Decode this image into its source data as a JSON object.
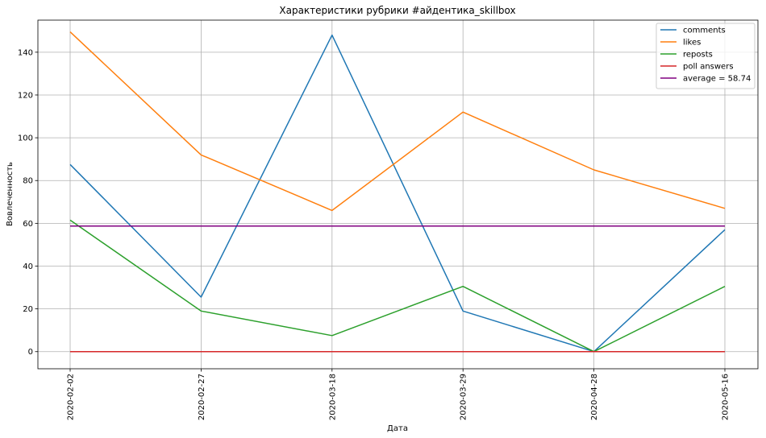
{
  "chart_data": {
    "type": "line",
    "title": "Характеристики рубрики #айдентика_skillbox",
    "xlabel": "Дата",
    "ylabel": "Вовлеченность",
    "categories": [
      "2020-02-02",
      "2020-02-27",
      "2020-03-18",
      "2020-03-29",
      "2020-04-28",
      "2020-05-16"
    ],
    "ylim": [
      -8,
      155
    ],
    "yticks": [
      0,
      20,
      40,
      60,
      80,
      100,
      120,
      140
    ],
    "grid": true,
    "legend_position": "top-right",
    "series": [
      {
        "name": "comments",
        "color": "#1f77b4",
        "values": [
          87.5,
          25.5,
          148,
          19,
          0,
          57
        ]
      },
      {
        "name": "likes",
        "color": "#ff7f0e",
        "values": [
          149.5,
          92,
          66,
          112,
          85,
          67
        ]
      },
      {
        "name": "reposts",
        "color": "#2ca02c",
        "values": [
          61.5,
          19,
          7.5,
          30.5,
          0,
          30.5
        ]
      },
      {
        "name": "poll answers",
        "color": "#d62728",
        "values": [
          0,
          0,
          0,
          0,
          0,
          0
        ]
      },
      {
        "name": "average = 58.74",
        "color": "#800080",
        "values": [
          58.74,
          58.74,
          58.74,
          58.74,
          58.74,
          58.74
        ]
      }
    ]
  }
}
